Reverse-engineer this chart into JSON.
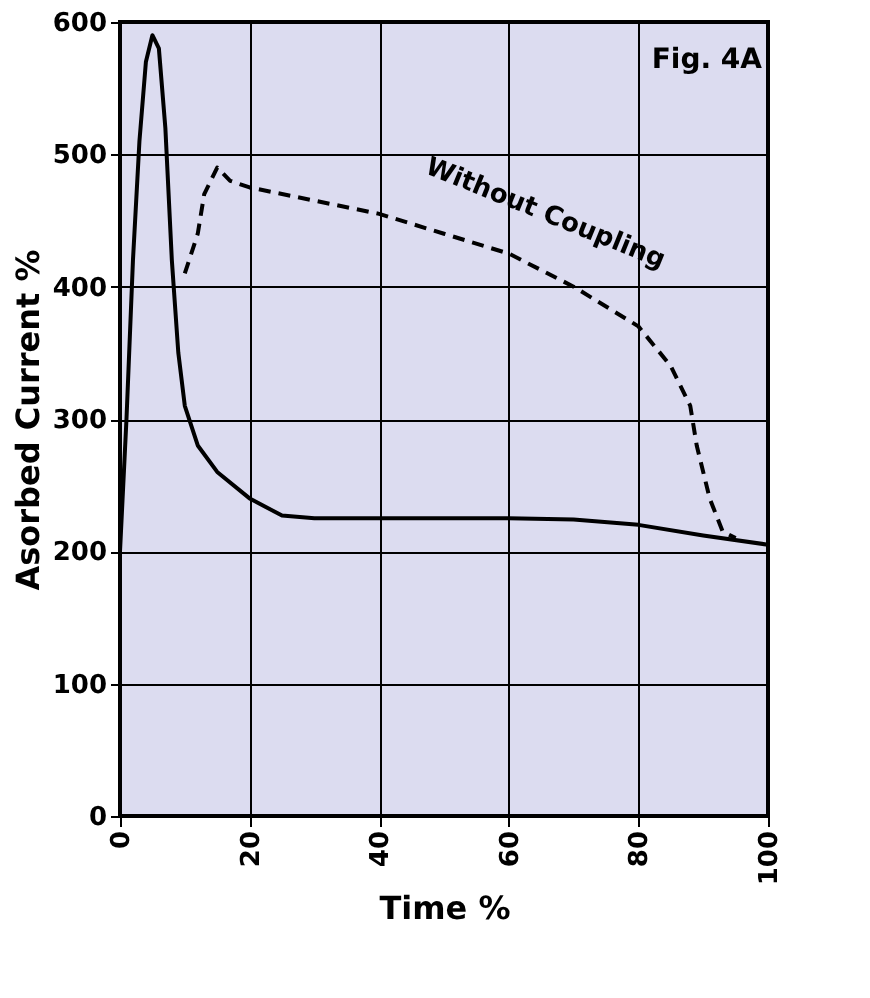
{
  "chart_data": {
    "type": "line",
    "xlabel": "Time %",
    "ylabel": "Asorbed Current %",
    "xlim": [
      0,
      100
    ],
    "ylim": [
      0,
      600
    ],
    "xticks": [
      0,
      20,
      40,
      60,
      80,
      100
    ],
    "yticks": [
      0,
      100,
      200,
      300,
      400,
      500,
      600
    ],
    "grid": true,
    "legend": false,
    "marker": "none",
    "series": [
      {
        "color": "#000000",
        "line_style": "solid",
        "x": [
          0,
          1,
          2,
          3,
          4,
          5,
          6,
          7,
          8,
          9,
          10,
          12,
          15,
          20,
          25,
          30,
          40,
          60,
          70,
          80,
          90,
          100
        ],
        "values": [
          200,
          300,
          420,
          510,
          570,
          590,
          580,
          520,
          420,
          350,
          310,
          280,
          260,
          240,
          227,
          225,
          225,
          225,
          224,
          220,
          212,
          205
        ]
      },
      {
        "color": "#000000",
        "line_style": "dashed",
        "x": [
          10,
          12,
          13,
          15,
          17,
          20,
          30,
          40,
          50,
          60,
          70,
          80,
          85,
          88,
          89,
          91,
          93,
          95
        ],
        "values": [
          410,
          440,
          470,
          490,
          480,
          475,
          465,
          455,
          440,
          425,
          400,
          370,
          340,
          310,
          280,
          240,
          215,
          210
        ]
      }
    ],
    "annotations": [
      "Fig. 4A",
      "Without Coupling"
    ]
  }
}
